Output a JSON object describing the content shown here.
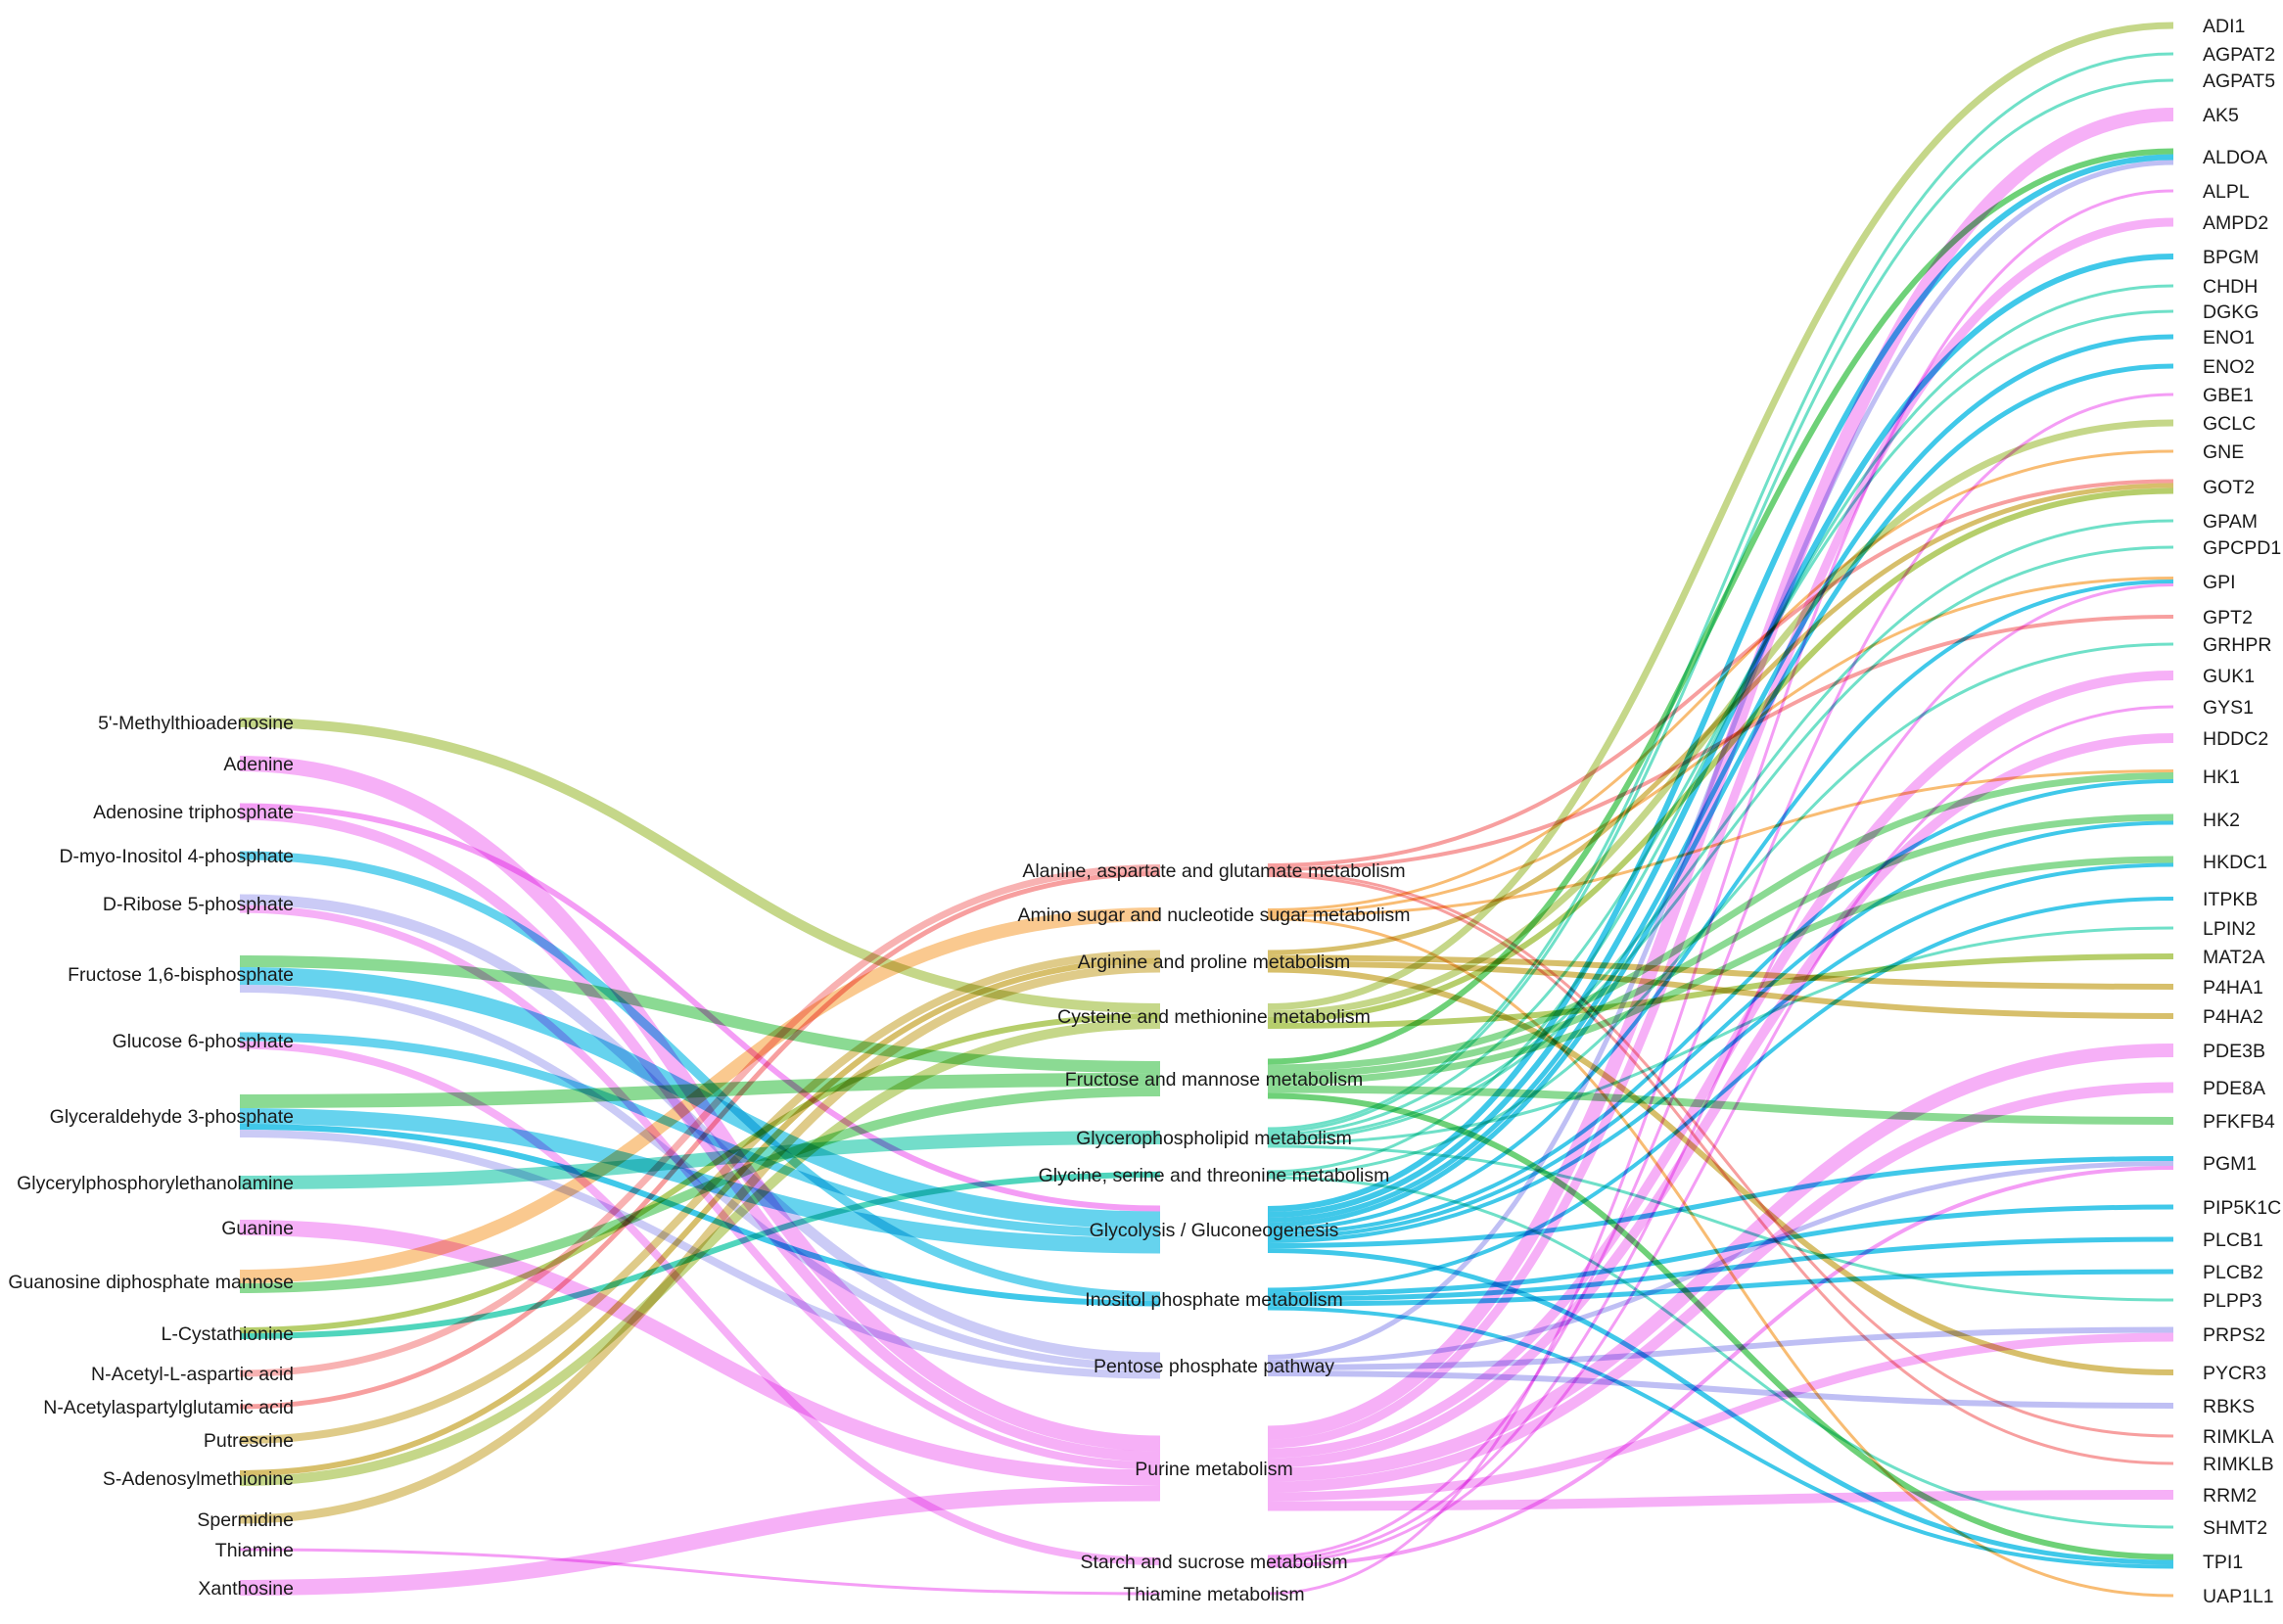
{
  "diagram": {
    "type": "sankey",
    "colors": {
      "pink": "#f07cf2",
      "cyan": "#00b5e2",
      "green": "#3ec24b",
      "olive": "#9ebd3a",
      "salmon": "#f47f7f",
      "orange": "#f6a544",
      "lavender": "#a9a9f0",
      "aqua": "#3fd6b6",
      "gold": "#c9a93a",
      "teal": "#16c7a6"
    },
    "metabolites": [
      {
        "id": "mta",
        "label": "5'-Methylthioadenosine"
      },
      {
        "id": "ade",
        "label": "Adenine"
      },
      {
        "id": "atp",
        "label": "Adenosine triphosphate"
      },
      {
        "id": "ip4",
        "label": "D-myo-Inositol 4-phosphate"
      },
      {
        "id": "r5p",
        "label": "D-Ribose 5-phosphate"
      },
      {
        "id": "fbp",
        "label": "Fructose 1,6-bisphosphate"
      },
      {
        "id": "g6p",
        "label": "Glucose 6-phosphate"
      },
      {
        "id": "g3p",
        "label": "Glyceraldehyde 3-phosphate"
      },
      {
        "id": "gpe",
        "label": "Glycerylphosphorylethanolamine"
      },
      {
        "id": "gua",
        "label": "Guanine"
      },
      {
        "id": "gdpm",
        "label": "Guanosine diphosphate mannose"
      },
      {
        "id": "cys",
        "label": "L-Cystathionine"
      },
      {
        "id": "naa",
        "label": "N-Acetyl-L-aspartic acid"
      },
      {
        "id": "naag",
        "label": "N-Acetylaspartylglutamic acid"
      },
      {
        "id": "put",
        "label": "Putrescine"
      },
      {
        "id": "sam",
        "label": "S-Adenosylmethionine"
      },
      {
        "id": "spd",
        "label": "Spermidine"
      },
      {
        "id": "thi",
        "label": "Thiamine"
      },
      {
        "id": "xan",
        "label": "Xanthosine"
      }
    ],
    "pathways": [
      {
        "id": "ala",
        "label": "Alanine, aspartate and glutamate metabolism"
      },
      {
        "id": "amino",
        "label": "Amino sugar and nucleotide sugar metabolism"
      },
      {
        "id": "arg",
        "label": "Arginine and proline metabolism"
      },
      {
        "id": "cysmet",
        "label": "Cysteine and methionine metabolism"
      },
      {
        "id": "fru",
        "label": "Fructose and mannose metabolism"
      },
      {
        "id": "glp",
        "label": "Glycerophospholipid metabolism"
      },
      {
        "id": "gly",
        "label": "Glycine, serine and threonine metabolism"
      },
      {
        "id": "glyc",
        "label": "Glycolysis / Gluconeogenesis"
      },
      {
        "id": "ino",
        "label": "Inositol phosphate metabolism"
      },
      {
        "id": "ppp",
        "label": "Pentose phosphate pathway"
      },
      {
        "id": "pur",
        "label": "Purine metabolism"
      },
      {
        "id": "star",
        "label": "Starch and sucrose metabolism"
      },
      {
        "id": "thim",
        "label": "Thiamine metabolism"
      }
    ],
    "genes": [
      {
        "id": "ADI1",
        "label": "ADI1"
      },
      {
        "id": "AGPAT2",
        "label": "AGPAT2"
      },
      {
        "id": "AGPAT5",
        "label": "AGPAT5"
      },
      {
        "id": "AK5",
        "label": "AK5"
      },
      {
        "id": "ALDOA",
        "label": "ALDOA"
      },
      {
        "id": "ALPL",
        "label": "ALPL"
      },
      {
        "id": "AMPD2",
        "label": "AMPD2"
      },
      {
        "id": "BPGM",
        "label": "BPGM"
      },
      {
        "id": "CHDH",
        "label": "CHDH"
      },
      {
        "id": "DGKG",
        "label": "DGKG"
      },
      {
        "id": "ENO1",
        "label": "ENO1"
      },
      {
        "id": "ENO2",
        "label": "ENO2"
      },
      {
        "id": "GBE1",
        "label": "GBE1"
      },
      {
        "id": "GCLC",
        "label": "GCLC"
      },
      {
        "id": "GNE",
        "label": "GNE"
      },
      {
        "id": "GOT2",
        "label": "GOT2"
      },
      {
        "id": "GPAM",
        "label": "GPAM"
      },
      {
        "id": "GPCPD1",
        "label": "GPCPD1"
      },
      {
        "id": "GPI",
        "label": "GPI"
      },
      {
        "id": "GPT2",
        "label": "GPT2"
      },
      {
        "id": "GRHPR",
        "label": "GRHPR"
      },
      {
        "id": "GUK1",
        "label": "GUK1"
      },
      {
        "id": "GYS1",
        "label": "GYS1"
      },
      {
        "id": "HDDC2",
        "label": "HDDC2"
      },
      {
        "id": "HK1",
        "label": "HK1"
      },
      {
        "id": "HK2",
        "label": "HK2"
      },
      {
        "id": "HKDC1",
        "label": "HKDC1"
      },
      {
        "id": "ITPKB",
        "label": "ITPKB"
      },
      {
        "id": "LPIN2",
        "label": "LPIN2"
      },
      {
        "id": "MAT2A",
        "label": "MAT2A"
      },
      {
        "id": "P4HA1",
        "label": "P4HA1"
      },
      {
        "id": "P4HA2",
        "label": "P4HA2"
      },
      {
        "id": "PDE3B",
        "label": "PDE3B"
      },
      {
        "id": "PDE8A",
        "label": "PDE8A"
      },
      {
        "id": "PFKFB4",
        "label": "PFKFB4"
      },
      {
        "id": "PGM1",
        "label": "PGM1"
      },
      {
        "id": "PIP5K1C",
        "label": "PIP5K1C"
      },
      {
        "id": "PLCB1",
        "label": "PLCB1"
      },
      {
        "id": "PLCB2",
        "label": "PLCB2"
      },
      {
        "id": "PLPP3",
        "label": "PLPP3"
      },
      {
        "id": "PRPS2",
        "label": "PRPS2"
      },
      {
        "id": "PYCR3",
        "label": "PYCR3"
      },
      {
        "id": "RBKS",
        "label": "RBKS"
      },
      {
        "id": "RIMKLA",
        "label": "RIMKLA"
      },
      {
        "id": "RIMKLB",
        "label": "RIMKLB"
      },
      {
        "id": "RRM2",
        "label": "RRM2"
      },
      {
        "id": "SHMT2",
        "label": "SHMT2"
      },
      {
        "id": "TPI1",
        "label": "TPI1"
      },
      {
        "id": "UAP1L1",
        "label": "UAP1L1"
      }
    ],
    "left_links": [
      {
        "from": "mta",
        "to": "cysmet",
        "color": "olive",
        "w": 10
      },
      {
        "from": "ade",
        "to": "pur",
        "color": "pink",
        "w": 16
      },
      {
        "from": "atp",
        "to": "pur",
        "color": "pink",
        "w": 11
      },
      {
        "from": "atp",
        "to": "glyc",
        "color": "pink",
        "w": 6
      },
      {
        "from": "ip4",
        "to": "ino",
        "color": "cyan",
        "w": 9
      },
      {
        "from": "r5p",
        "to": "ppp",
        "color": "lavender",
        "w": 11
      },
      {
        "from": "r5p",
        "to": "pur",
        "color": "pink",
        "w": 8
      },
      {
        "from": "fbp",
        "to": "fru",
        "color": "green",
        "w": 12
      },
      {
        "from": "fbp",
        "to": "glyc",
        "color": "cyan",
        "w": 18
      },
      {
        "from": "fbp",
        "to": "ppp",
        "color": "lavender",
        "w": 8
      },
      {
        "from": "g6p",
        "to": "glyc",
        "color": "cyan",
        "w": 9
      },
      {
        "from": "g6p",
        "to": "star",
        "color": "pink",
        "w": 8
      },
      {
        "from": "g3p",
        "to": "fru",
        "color": "green",
        "w": 14
      },
      {
        "from": "g3p",
        "to": "glyc",
        "color": "cyan",
        "w": 16
      },
      {
        "from": "g3p",
        "to": "ppp",
        "color": "lavender",
        "w": 8
      },
      {
        "from": "g3p",
        "to": "ino",
        "color": "cyan",
        "w": 6
      },
      {
        "from": "gpe",
        "to": "glp",
        "color": "teal",
        "w": 14
      },
      {
        "from": "gua",
        "to": "pur",
        "color": "pink",
        "w": 16
      },
      {
        "from": "gdpm",
        "to": "amino",
        "color": "orange",
        "w": 14
      },
      {
        "from": "gdpm",
        "to": "fru",
        "color": "green",
        "w": 10
      },
      {
        "from": "cys",
        "to": "cysmet",
        "color": "olive",
        "w": 6
      },
      {
        "from": "cys",
        "to": "gly",
        "color": "teal",
        "w": 6
      },
      {
        "from": "naa",
        "to": "ala",
        "color": "salmon",
        "w": 7
      },
      {
        "from": "naag",
        "to": "ala",
        "color": "salmon",
        "w": 5
      },
      {
        "from": "put",
        "to": "arg",
        "color": "gold",
        "w": 8
      },
      {
        "from": "sam",
        "to": "cysmet",
        "color": "olive",
        "w": 10
      },
      {
        "from": "sam",
        "to": "arg",
        "color": "gold",
        "w": 6
      },
      {
        "from": "spd",
        "to": "arg",
        "color": "gold",
        "w": 9
      },
      {
        "from": "thi",
        "to": "thim",
        "color": "pink",
        "w": 3
      },
      {
        "from": "xan",
        "to": "pur",
        "color": "pink",
        "w": 16
      }
    ],
    "right_links": [
      {
        "from": "cysmet",
        "to": "ADI1",
        "color": "olive",
        "w": 7
      },
      {
        "from": "glp",
        "to": "AGPAT2",
        "color": "aqua",
        "w": 3
      },
      {
        "from": "glp",
        "to": "AGPAT5",
        "color": "aqua",
        "w": 3
      },
      {
        "from": "pur",
        "to": "AK5",
        "color": "pink",
        "w": 14
      },
      {
        "from": "fru",
        "to": "ALDOA",
        "color": "green",
        "w": 6
      },
      {
        "from": "glyc",
        "to": "ALDOA",
        "color": "cyan",
        "w": 6
      },
      {
        "from": "ppp",
        "to": "ALDOA",
        "color": "lavender",
        "w": 5
      },
      {
        "from": "thim",
        "to": "ALPL",
        "color": "pink",
        "w": 3
      },
      {
        "from": "pur",
        "to": "AMPD2",
        "color": "pink",
        "w": 9
      },
      {
        "from": "glyc",
        "to": "BPGM",
        "color": "cyan",
        "w": 6
      },
      {
        "from": "gly",
        "to": "CHDH",
        "color": "aqua",
        "w": 3
      },
      {
        "from": "glp",
        "to": "DGKG",
        "color": "aqua",
        "w": 3
      },
      {
        "from": "glyc",
        "to": "ENO1",
        "color": "cyan",
        "w": 5
      },
      {
        "from": "glyc",
        "to": "ENO2",
        "color": "cyan",
        "w": 5
      },
      {
        "from": "star",
        "to": "GBE1",
        "color": "pink",
        "w": 3
      },
      {
        "from": "cysmet",
        "to": "GCLC",
        "color": "olive",
        "w": 7
      },
      {
        "from": "amino",
        "to": "GNE",
        "color": "orange",
        "w": 3
      },
      {
        "from": "ala",
        "to": "GOT2",
        "color": "salmon",
        "w": 4
      },
      {
        "from": "arg",
        "to": "GOT2",
        "color": "gold",
        "w": 5
      },
      {
        "from": "cysmet",
        "to": "GOT2",
        "color": "olive",
        "w": 6
      },
      {
        "from": "glp",
        "to": "GPAM",
        "color": "aqua",
        "w": 3
      },
      {
        "from": "glp",
        "to": "GPCPD1",
        "color": "aqua",
        "w": 3
      },
      {
        "from": "glyc",
        "to": "GPI",
        "color": "cyan",
        "w": 4
      },
      {
        "from": "star",
        "to": "GPI",
        "color": "pink",
        "w": 3
      },
      {
        "from": "amino",
        "to": "GPI",
        "color": "orange",
        "w": 3
      },
      {
        "from": "ala",
        "to": "GPT2",
        "color": "salmon",
        "w": 4
      },
      {
        "from": "gly",
        "to": "GRHPR",
        "color": "aqua",
        "w": 3
      },
      {
        "from": "pur",
        "to": "GUK1",
        "color": "pink",
        "w": 10
      },
      {
        "from": "star",
        "to": "GYS1",
        "color": "pink",
        "w": 3
      },
      {
        "from": "pur",
        "to": "HDDC2",
        "color": "pink",
        "w": 10
      },
      {
        "from": "fru",
        "to": "HK1",
        "color": "green",
        "w": 7
      },
      {
        "from": "glyc",
        "to": "HK1",
        "color": "cyan",
        "w": 4
      },
      {
        "from": "amino",
        "to": "HK1",
        "color": "orange",
        "w": 3
      },
      {
        "from": "fru",
        "to": "HK2",
        "color": "green",
        "w": 7
      },
      {
        "from": "glyc",
        "to": "HK2",
        "color": "cyan",
        "w": 4
      },
      {
        "from": "fru",
        "to": "HKDC1",
        "color": "green",
        "w": 7
      },
      {
        "from": "glyc",
        "to": "HKDC1",
        "color": "cyan",
        "w": 4
      },
      {
        "from": "ino",
        "to": "ITPKB",
        "color": "cyan",
        "w": 4
      },
      {
        "from": "glp",
        "to": "LPIN2",
        "color": "aqua",
        "w": 3
      },
      {
        "from": "cysmet",
        "to": "MAT2A",
        "color": "olive",
        "w": 6
      },
      {
        "from": "arg",
        "to": "P4HA1",
        "color": "gold",
        "w": 6
      },
      {
        "from": "arg",
        "to": "P4HA2",
        "color": "gold",
        "w": 6
      },
      {
        "from": "pur",
        "to": "PDE3B",
        "color": "pink",
        "w": 14
      },
      {
        "from": "pur",
        "to": "PDE8A",
        "color": "pink",
        "w": 11
      },
      {
        "from": "fru",
        "to": "PFKFB4",
        "color": "green",
        "w": 8
      },
      {
        "from": "glyc",
        "to": "PGM1",
        "color": "cyan",
        "w": 5
      },
      {
        "from": "ppp",
        "to": "PGM1",
        "color": "lavender",
        "w": 5
      },
      {
        "from": "star",
        "to": "PGM1",
        "color": "pink",
        "w": 4
      },
      {
        "from": "ino",
        "to": "PIP5K1C",
        "color": "cyan",
        "w": 5
      },
      {
        "from": "ino",
        "to": "PLCB1",
        "color": "cyan",
        "w": 5
      },
      {
        "from": "ino",
        "to": "PLCB2",
        "color": "cyan",
        "w": 5
      },
      {
        "from": "glp",
        "to": "PLPP3",
        "color": "aqua",
        "w": 3
      },
      {
        "from": "ppp",
        "to": "PRPS2",
        "color": "lavender",
        "w": 6
      },
      {
        "from": "pur",
        "to": "PRPS2",
        "color": "pink",
        "w": 9
      },
      {
        "from": "arg",
        "to": "PYCR3",
        "color": "gold",
        "w": 6
      },
      {
        "from": "ppp",
        "to": "RBKS",
        "color": "lavender",
        "w": 6
      },
      {
        "from": "ala",
        "to": "RIMKLA",
        "color": "salmon",
        "w": 3
      },
      {
        "from": "ala",
        "to": "RIMKLB",
        "color": "salmon",
        "w": 3
      },
      {
        "from": "pur",
        "to": "RRM2",
        "color": "pink",
        "w": 10
      },
      {
        "from": "gly",
        "to": "SHMT2",
        "color": "aqua",
        "w": 3
      },
      {
        "from": "fru",
        "to": "TPI1",
        "color": "green",
        "w": 6
      },
      {
        "from": "glyc",
        "to": "TPI1",
        "color": "cyan",
        "w": 5
      },
      {
        "from": "ino",
        "to": "TPI1",
        "color": "cyan",
        "w": 4
      },
      {
        "from": "amino",
        "to": "UAP1L1",
        "color": "orange",
        "w": 3
      }
    ]
  }
}
